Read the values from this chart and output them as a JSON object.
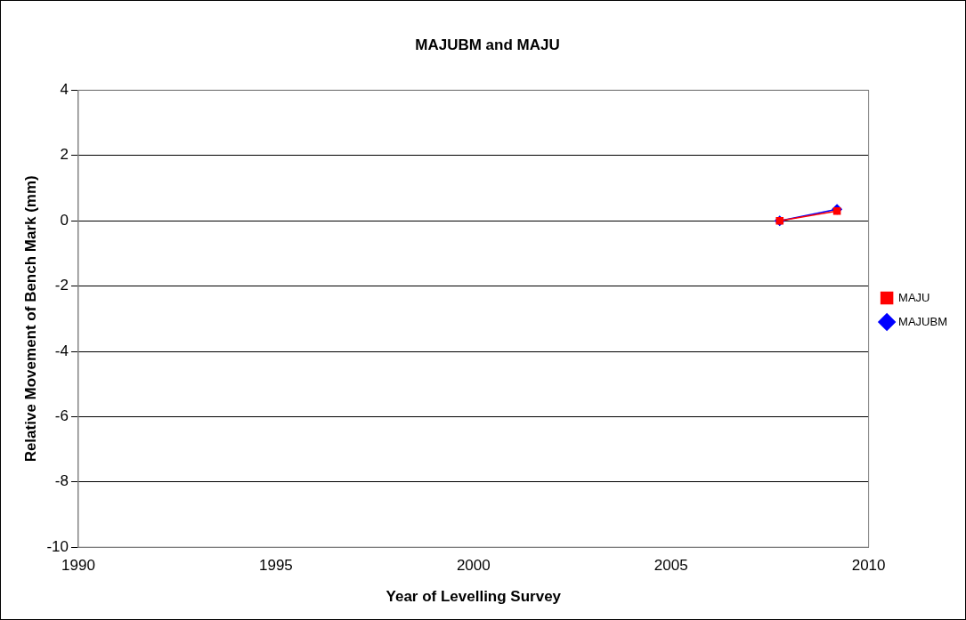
{
  "chart_data": {
    "type": "line",
    "title": "MAJUBM and MAJU",
    "xlabel": "Year of Levelling Survey",
    "ylabel": "Relative Movement of Bench Mark (mm)",
    "x": [
      2007.75,
      2009.2
    ],
    "series": [
      {
        "name": "MAJUBM",
        "color": "#0000ff",
        "values": [
          0,
          0.35
        ],
        "marker": "diamond"
      },
      {
        "name": "MAJU",
        "color": "#ff0000",
        "values": [
          0,
          0.3
        ],
        "marker": "square"
      }
    ],
    "xlim": [
      1990,
      2010
    ],
    "xticks": [
      1990,
      1995,
      2000,
      2005,
      2010
    ],
    "ylim": [
      -10,
      4
    ],
    "yticks": [
      -10,
      -8,
      -6,
      -4,
      -2,
      0,
      2,
      4
    ],
    "grid": "y",
    "legend": "right"
  }
}
